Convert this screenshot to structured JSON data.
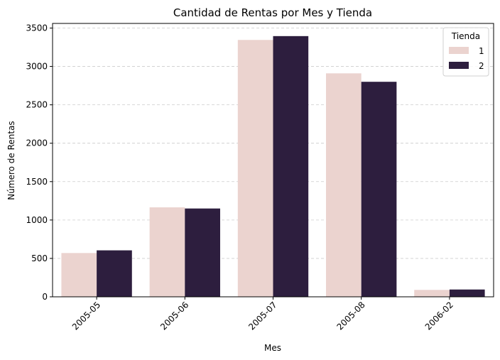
{
  "chart_data": {
    "type": "bar",
    "title": "Cantidad de Rentas por Mes y Tienda",
    "xlabel": "Mes",
    "ylabel": "Número de Rentas",
    "categories": [
      "2005-05",
      "2005-06",
      "2005-07",
      "2005-08",
      "2006-02"
    ],
    "series": [
      {
        "name": "1",
        "color": "#ebd3cf",
        "values": [
          570,
          1165,
          3345,
          2910,
          90
        ]
      },
      {
        "name": "2",
        "color": "#2d1e3e",
        "values": [
          605,
          1150,
          3395,
          2800,
          95
        ]
      }
    ],
    "ylim": [
      0,
      3560
    ],
    "yticks": [
      0,
      500,
      1000,
      1500,
      2000,
      2500,
      3000,
      3500
    ],
    "grid": "y-dashed",
    "legend": {
      "title": "Tienda",
      "position": "top-right"
    }
  }
}
